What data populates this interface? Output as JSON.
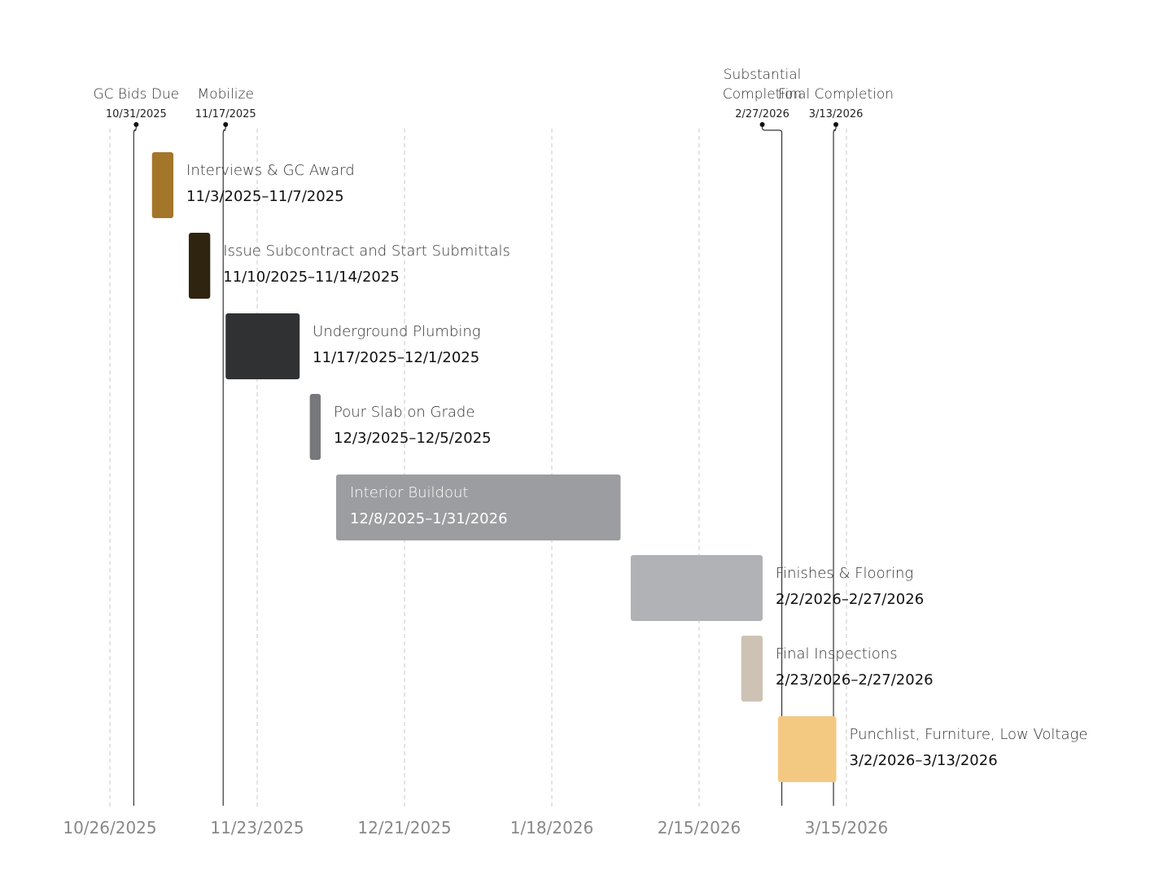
{
  "chart_data": {
    "type": "gantt",
    "x_ticks": [
      "10/26/2025",
      "11/23/2025",
      "12/21/2025",
      "1/18/2026",
      "2/15/2026",
      "3/15/2026"
    ],
    "grid": "vertical dashed lines at x ticks",
    "tasks": [
      {
        "name": "Interviews & GC Award",
        "start": "2025-11-03",
        "end": "2025-11-07",
        "date_label": "11/3/2025–11/7/2025",
        "color": "#a4762a"
      },
      {
        "name": "Issue Subcontract and Start Submittals",
        "start": "2025-11-10",
        "end": "2025-11-14",
        "date_label": "11/10/2025–11/14/2025",
        "color": "#2e2410"
      },
      {
        "name": "Underground Plumbing",
        "start": "2025-11-17",
        "end": "2025-12-01",
        "date_label": "11/17/2025–12/1/2025",
        "color": "#303133"
      },
      {
        "name": "Pour Slab on Grade",
        "start": "2025-12-03",
        "end": "2025-12-05",
        "date_label": "12/3/2025–12/5/2025",
        "color": "#77787b"
      },
      {
        "name": "Interior Buildout",
        "start": "2025-12-08",
        "end": "2026-01-31",
        "date_label": "12/8/2025–1/31/2026",
        "color": "#9c9da0",
        "label_inside": true
      },
      {
        "name": "Finishes & Flooring",
        "start": "2026-02-02",
        "end": "2026-02-27",
        "date_label": "2/2/2026–2/27/2026",
        "color": "#b1b2b6"
      },
      {
        "name": "Final Inspections",
        "start": "2026-02-23",
        "end": "2026-02-27",
        "date_label": "2/23/2026–2/27/2026",
        "color": "#cdc2b4"
      },
      {
        "name": "Punchlist, Furniture, Low Voltage",
        "start": "2026-03-02",
        "end": "2026-03-13",
        "date_label": "3/2/2026–3/13/2026",
        "color": "#f3c982"
      }
    ],
    "milestones": [
      {
        "name_lines": [
          "GC Bids Due"
        ],
        "date": "2025-10-31",
        "date_label": "10/31/2025",
        "line_offset": -1
      },
      {
        "name_lines": [
          "Mobilize"
        ],
        "date": "2025-11-17",
        "date_label": "11/17/2025",
        "line_offset": -1
      },
      {
        "name_lines": [
          "Substantial",
          "Completion"
        ],
        "date": "2026-02-27",
        "date_label": "2/27/2026",
        "line_offset": 1
      },
      {
        "name_lines": [
          "Final Completion"
        ],
        "date": "2026-03-13",
        "date_label": "3/13/2026",
        "line_offset": -1
      }
    ]
  }
}
